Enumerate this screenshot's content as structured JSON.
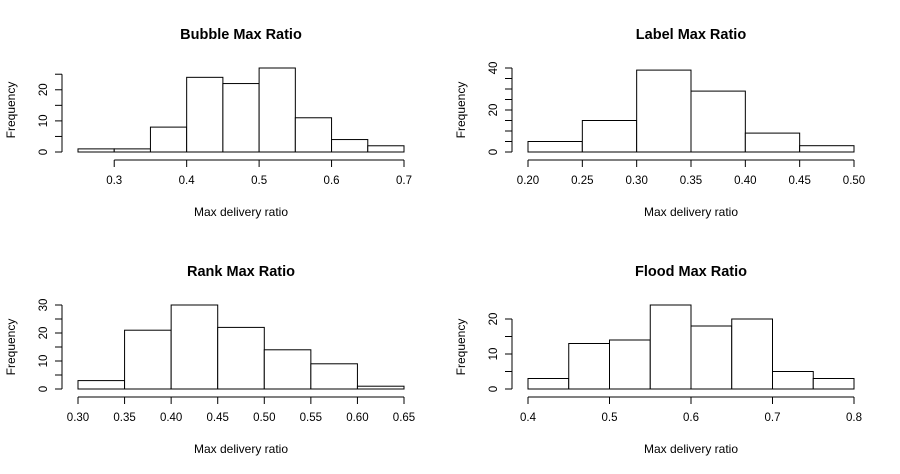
{
  "chart_data": [
    {
      "type": "bar",
      "title": "Bubble Max Ratio",
      "xlabel": "Max delivery ratio",
      "ylabel": "Frequency",
      "bin_edges": [
        0.25,
        0.3,
        0.35,
        0.4,
        0.45,
        0.5,
        0.55,
        0.6,
        0.65,
        0.7
      ],
      "values": [
        1,
        1,
        8,
        24,
        22,
        27,
        11,
        4,
        2
      ],
      "x_ticks": [
        "0.3",
        "0.4",
        "0.5",
        "0.6",
        "0.7"
      ],
      "x_tick_values": [
        0.3,
        0.4,
        0.5,
        0.6,
        0.7
      ],
      "y_ticks": [
        "0",
        "10",
        "20"
      ],
      "y_tick_values": [
        0,
        10,
        20
      ],
      "y_axis_top": 25,
      "ylim": [
        0,
        27
      ]
    },
    {
      "type": "bar",
      "title": "Label Max Ratio",
      "xlabel": "Max delivery ratio",
      "ylabel": "Frequency",
      "bin_edges": [
        0.2,
        0.25,
        0.3,
        0.35,
        0.4,
        0.45,
        0.5
      ],
      "values": [
        5,
        15,
        39,
        29,
        9,
        3
      ],
      "x_ticks": [
        "0.20",
        "0.25",
        "0.30",
        "0.35",
        "0.40",
        "0.45",
        "0.50"
      ],
      "x_tick_values": [
        0.2,
        0.25,
        0.3,
        0.35,
        0.4,
        0.45,
        0.5
      ],
      "y_ticks": [
        "0",
        "20",
        "40"
      ],
      "y_tick_values": [
        0,
        20,
        40
      ],
      "y_axis_top": 40,
      "ylim": [
        0,
        40
      ]
    },
    {
      "type": "bar",
      "title": "Rank Max Ratio",
      "xlabel": "Max delivery ratio",
      "ylabel": "Frequency",
      "bin_edges": [
        0.3,
        0.35,
        0.4,
        0.45,
        0.5,
        0.55,
        0.6,
        0.65
      ],
      "values": [
        3,
        21,
        30,
        22,
        14,
        9,
        1
      ],
      "x_ticks": [
        "0.30",
        "0.35",
        "0.40",
        "0.45",
        "0.50",
        "0.55",
        "0.60",
        "0.65"
      ],
      "x_tick_values": [
        0.3,
        0.35,
        0.4,
        0.45,
        0.5,
        0.55,
        0.6,
        0.65
      ],
      "y_ticks": [
        "0",
        "10",
        "20",
        "30"
      ],
      "y_tick_values": [
        0,
        10,
        20,
        30
      ],
      "y_axis_top": 30,
      "ylim": [
        0,
        30
      ]
    },
    {
      "type": "bar",
      "title": "Flood Max Ratio",
      "xlabel": "Max delivery ratio",
      "ylabel": "Frequency",
      "bin_edges": [
        0.4,
        0.45,
        0.5,
        0.55,
        0.6,
        0.65,
        0.7,
        0.75,
        0.8
      ],
      "values": [
        3,
        13,
        14,
        24,
        18,
        20,
        5,
        3
      ],
      "x_ticks": [
        "0.4",
        "0.5",
        "0.6",
        "0.7",
        "0.8"
      ],
      "x_tick_values": [
        0.4,
        0.5,
        0.6,
        0.7,
        0.8
      ],
      "y_ticks": [
        "0",
        "10",
        "20"
      ],
      "y_tick_values": [
        0,
        10,
        20
      ],
      "y_axis_top": 20,
      "ylim": [
        0,
        24
      ]
    }
  ]
}
